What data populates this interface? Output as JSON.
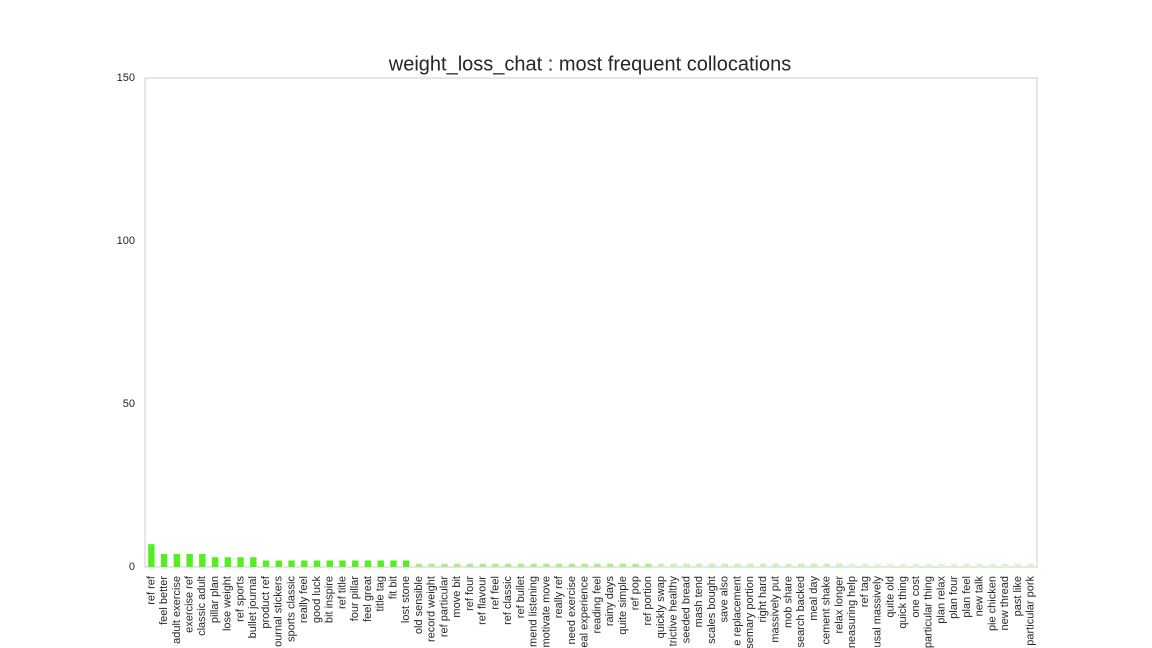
{
  "chart_data": {
    "type": "bar",
    "title": "weight_loss_chat : most frequent collocations",
    "categories": [
      "ref ref",
      "feel better",
      "adult exercise",
      "exercise ref",
      "classic adult",
      "pillar plan",
      "lose weight",
      "ref sports",
      "bullet journal",
      "product ref",
      "ournal stickers",
      "sports classic",
      "really feel",
      "good luck",
      "bit inspire",
      "ref title",
      "four pillar",
      "feel great",
      "title tag",
      "fit bit",
      "lost stone",
      "old sensible",
      "record weight",
      "ref particular",
      "move bit",
      "ref four",
      "ref flavour",
      "ref feel",
      "ref classic",
      "ref bullet",
      "mend listening",
      "motivate move",
      "really ref",
      "need exercise",
      "eal experience",
      "reading feel",
      "rainy days",
      "quite simple",
      "ref pop",
      "ref portion",
      "quickly swap",
      "trictive healthy",
      "seeded bread",
      "mash tend",
      "scales bought",
      "save also",
      "e replacement",
      "semary portion",
      "right hard",
      "massively put",
      "mob share",
      "search backed",
      "meal day",
      "cement shake",
      "relax longer",
      "neasuring help",
      "ref tag",
      "usal massively",
      "quite old",
      "quick thing",
      "one cost",
      "particular thing",
      "plan relax",
      "plan four",
      "plan feel",
      "new talk",
      "pie chicken",
      "new thread",
      "past like",
      "particular pork"
    ],
    "values": [
      7,
      4,
      4,
      4,
      4,
      3,
      3,
      3,
      3,
      2,
      2,
      2,
      2,
      2,
      2,
      2,
      2,
      2,
      2,
      2,
      2,
      1,
      1,
      1,
      1,
      1,
      1,
      1,
      1,
      1,
      1,
      1,
      1,
      1,
      1,
      1,
      1,
      1,
      1,
      1,
      1,
      1,
      1,
      1,
      1,
      1,
      1,
      1,
      1,
      1,
      1,
      1,
      1,
      1,
      1,
      1,
      1,
      1,
      1,
      1,
      1,
      1,
      1,
      1,
      1,
      1,
      1,
      1,
      1,
      1
    ],
    "colors": [
      "#55ee22",
      "#55ee22",
      "#55ee22",
      "#55ee22",
      "#55ee22",
      "#55ee22",
      "#55ee22",
      "#55ee22",
      "#55ee22",
      "#55ee22",
      "#55ee22",
      "#55ee22",
      "#55ee22",
      "#55ee22",
      "#55ee22",
      "#55ee22",
      "#55ee22",
      "#55ee22",
      "#55ee22",
      "#55ee22",
      "#55ee22",
      "#a8f08a",
      "#a8f08a",
      "#a8f08a",
      "#a8f08a",
      "#a8f08a",
      "#a8f08a",
      "#a8f08a",
      "#a8f08a",
      "#a8f08a",
      "#a8f08a",
      "#a8f08a",
      "#a8f08a",
      "#a8f08a",
      "#a8f08a",
      "#a8f08a",
      "#a8f08a",
      "#a8f08a",
      "#a8f08a",
      "#a8f08a",
      "#c4f4b0",
      "#c4f4b0",
      "#c4f4b0",
      "#c4f4b0",
      "#c4f4b0",
      "#c4f4b0",
      "#c4f4b0",
      "#c4f4b0",
      "#c4f4b0",
      "#c4f4b0",
      "#c4f4b0",
      "#c4f4b0",
      "#c4f4b0",
      "#c4f4b0",
      "#c4f4b0",
      "#d8f8cc",
      "#d8f8cc",
      "#d8f8cc",
      "#d8f8cc",
      "#d8f8cc",
      "#d8f8cc",
      "#d8f8cc",
      "#d8f8cc",
      "#d8f8cc",
      "#d8f8cc",
      "#d8f8cc",
      "#d8f8cc",
      "#d8f8cc",
      "#d8f8cc",
      "#d8f8cc"
    ],
    "ylim": [
      0,
      150
    ],
    "yticks": [
      0,
      50,
      100,
      150
    ],
    "grid": false
  }
}
